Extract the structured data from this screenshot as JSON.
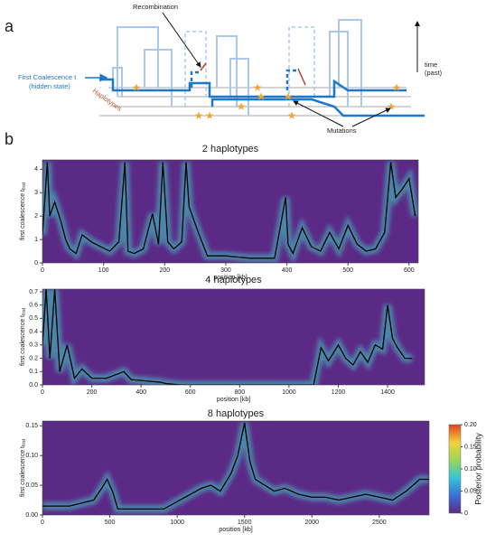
{
  "diagram": {
    "panel_label": "a",
    "recombination": "Recombination",
    "first_coalescence": "First Coalescence t",
    "hidden_state": "(hidden state)",
    "haplotypes": "Haplotypes",
    "time": "time",
    "past": "(past)",
    "mutations": "Mutations"
  },
  "panel_b_label": "b",
  "chart_data": [
    {
      "type": "line",
      "title": "2 haplotypes",
      "xlabel": "position [kb]",
      "ylabel": "first coalescence t",
      "ylabel_sub": "first",
      "background": "#5b2a86",
      "color": "#000000",
      "x": [
        0,
        8,
        12,
        20,
        30,
        38,
        45,
        55,
        65,
        80,
        95,
        110,
        125,
        135,
        140,
        150,
        165,
        180,
        190,
        197,
        205,
        215,
        228,
        235,
        240,
        255,
        270,
        300,
        340,
        380,
        398,
        402,
        410,
        425,
        440,
        455,
        470,
        485,
        500,
        515,
        530,
        545,
        560,
        570,
        578,
        590,
        600,
        610
      ],
      "values": [
        1.2,
        4.3,
        2.0,
        2.6,
        1.8,
        1.0,
        0.6,
        0.4,
        1.2,
        0.9,
        0.7,
        0.5,
        0.9,
        4.3,
        0.5,
        0.4,
        0.6,
        2.1,
        0.8,
        4.3,
        0.9,
        0.6,
        0.9,
        4.3,
        2.4,
        1.3,
        0.3,
        0.3,
        0.2,
        0.2,
        2.8,
        0.8,
        0.4,
        1.5,
        0.7,
        0.5,
        1.3,
        0.6,
        1.6,
        0.8,
        0.5,
        0.6,
        1.3,
        4.3,
        2.8,
        3.2,
        3.6,
        2.0
      ],
      "xlim": [
        0,
        615
      ],
      "xticks": [
        0,
        100,
        200,
        300,
        400,
        500,
        600
      ],
      "ylim": [
        0,
        4.4
      ],
      "yticks": [
        0,
        1,
        2,
        3,
        4
      ]
    },
    {
      "type": "line",
      "title": "4 haplotypes",
      "xlabel": "position [kb]",
      "ylabel": "first coalescence t",
      "ylabel_sub": "first",
      "background": "#5b2a86",
      "color": "#000000",
      "x": [
        0,
        15,
        30,
        50,
        70,
        100,
        130,
        160,
        200,
        260,
        330,
        360,
        480,
        500,
        560,
        700,
        900,
        1100,
        1130,
        1160,
        1200,
        1230,
        1260,
        1290,
        1320,
        1350,
        1380,
        1400,
        1420,
        1440,
        1470,
        1500
      ],
      "values": [
        0.3,
        0.72,
        0.2,
        0.72,
        0.1,
        0.3,
        0.05,
        0.12,
        0.05,
        0.05,
        0.1,
        0.04,
        0.02,
        0.01,
        0,
        0,
        0,
        0,
        0.28,
        0.18,
        0.3,
        0.2,
        0.15,
        0.25,
        0.17,
        0.3,
        0.27,
        0.6,
        0.35,
        0.28,
        0.2,
        0.2
      ],
      "xlim": [
        0,
        1550
      ],
      "xticks": [
        0,
        200,
        400,
        600,
        800,
        1000,
        1200,
        1400
      ],
      "ylim": [
        0,
        0.72
      ],
      "yticks": [
        {
          "value": 0,
          "label": "0.0"
        },
        0.1,
        0.2,
        0.3,
        0.4,
        0.5,
        0.6,
        0.7
      ]
    },
    {
      "type": "line",
      "title": "8 haplotypes",
      "xlabel": "position [kb]",
      "ylabel": "first coalescence t",
      "ylabel_sub": "first",
      "background": "#5b2a86",
      "color": "#000000",
      "x": [
        0,
        200,
        380,
        440,
        480,
        520,
        560,
        700,
        900,
        1180,
        1250,
        1320,
        1400,
        1450,
        1500,
        1540,
        1580,
        1650,
        1720,
        1800,
        1900,
        2000,
        2100,
        2200,
        2300,
        2400,
        2500,
        2600,
        2700,
        2800,
        2870
      ],
      "values": [
        0.015,
        0.015,
        0.025,
        0.045,
        0.06,
        0.04,
        0.01,
        0.01,
        0.01,
        0.045,
        0.05,
        0.04,
        0.07,
        0.1,
        0.155,
        0.09,
        0.06,
        0.05,
        0.04,
        0.045,
        0.035,
        0.03,
        0.03,
        0.025,
        0.03,
        0.035,
        0.03,
        0.025,
        0.04,
        0.06,
        0.06
      ],
      "xlim": [
        0,
        2870
      ],
      "xticks": [
        0,
        500,
        1000,
        1500,
        2000,
        2500
      ],
      "ylim": [
        0,
        0.158
      ],
      "yticks": [
        {
          "value": 0,
          "label": "0.00"
        },
        0.05,
        {
          "value": 0.1,
          "label": "0.10"
        },
        0.15
      ],
      "colorbar": {
        "label": "Posterior probability",
        "lim": [
          0,
          0.2
        ],
        "ticks": [
          0,
          0.05,
          {
            "value": 0.1,
            "label": "0.10"
          },
          0.15,
          {
            "value": 0.2,
            "label": "0.20"
          }
        ],
        "colors": [
          "#5b2a86",
          "#3b6fd6",
          "#35c4d6",
          "#9bd65a",
          "#f2d23a",
          "#e0401f"
        ]
      }
    }
  ]
}
